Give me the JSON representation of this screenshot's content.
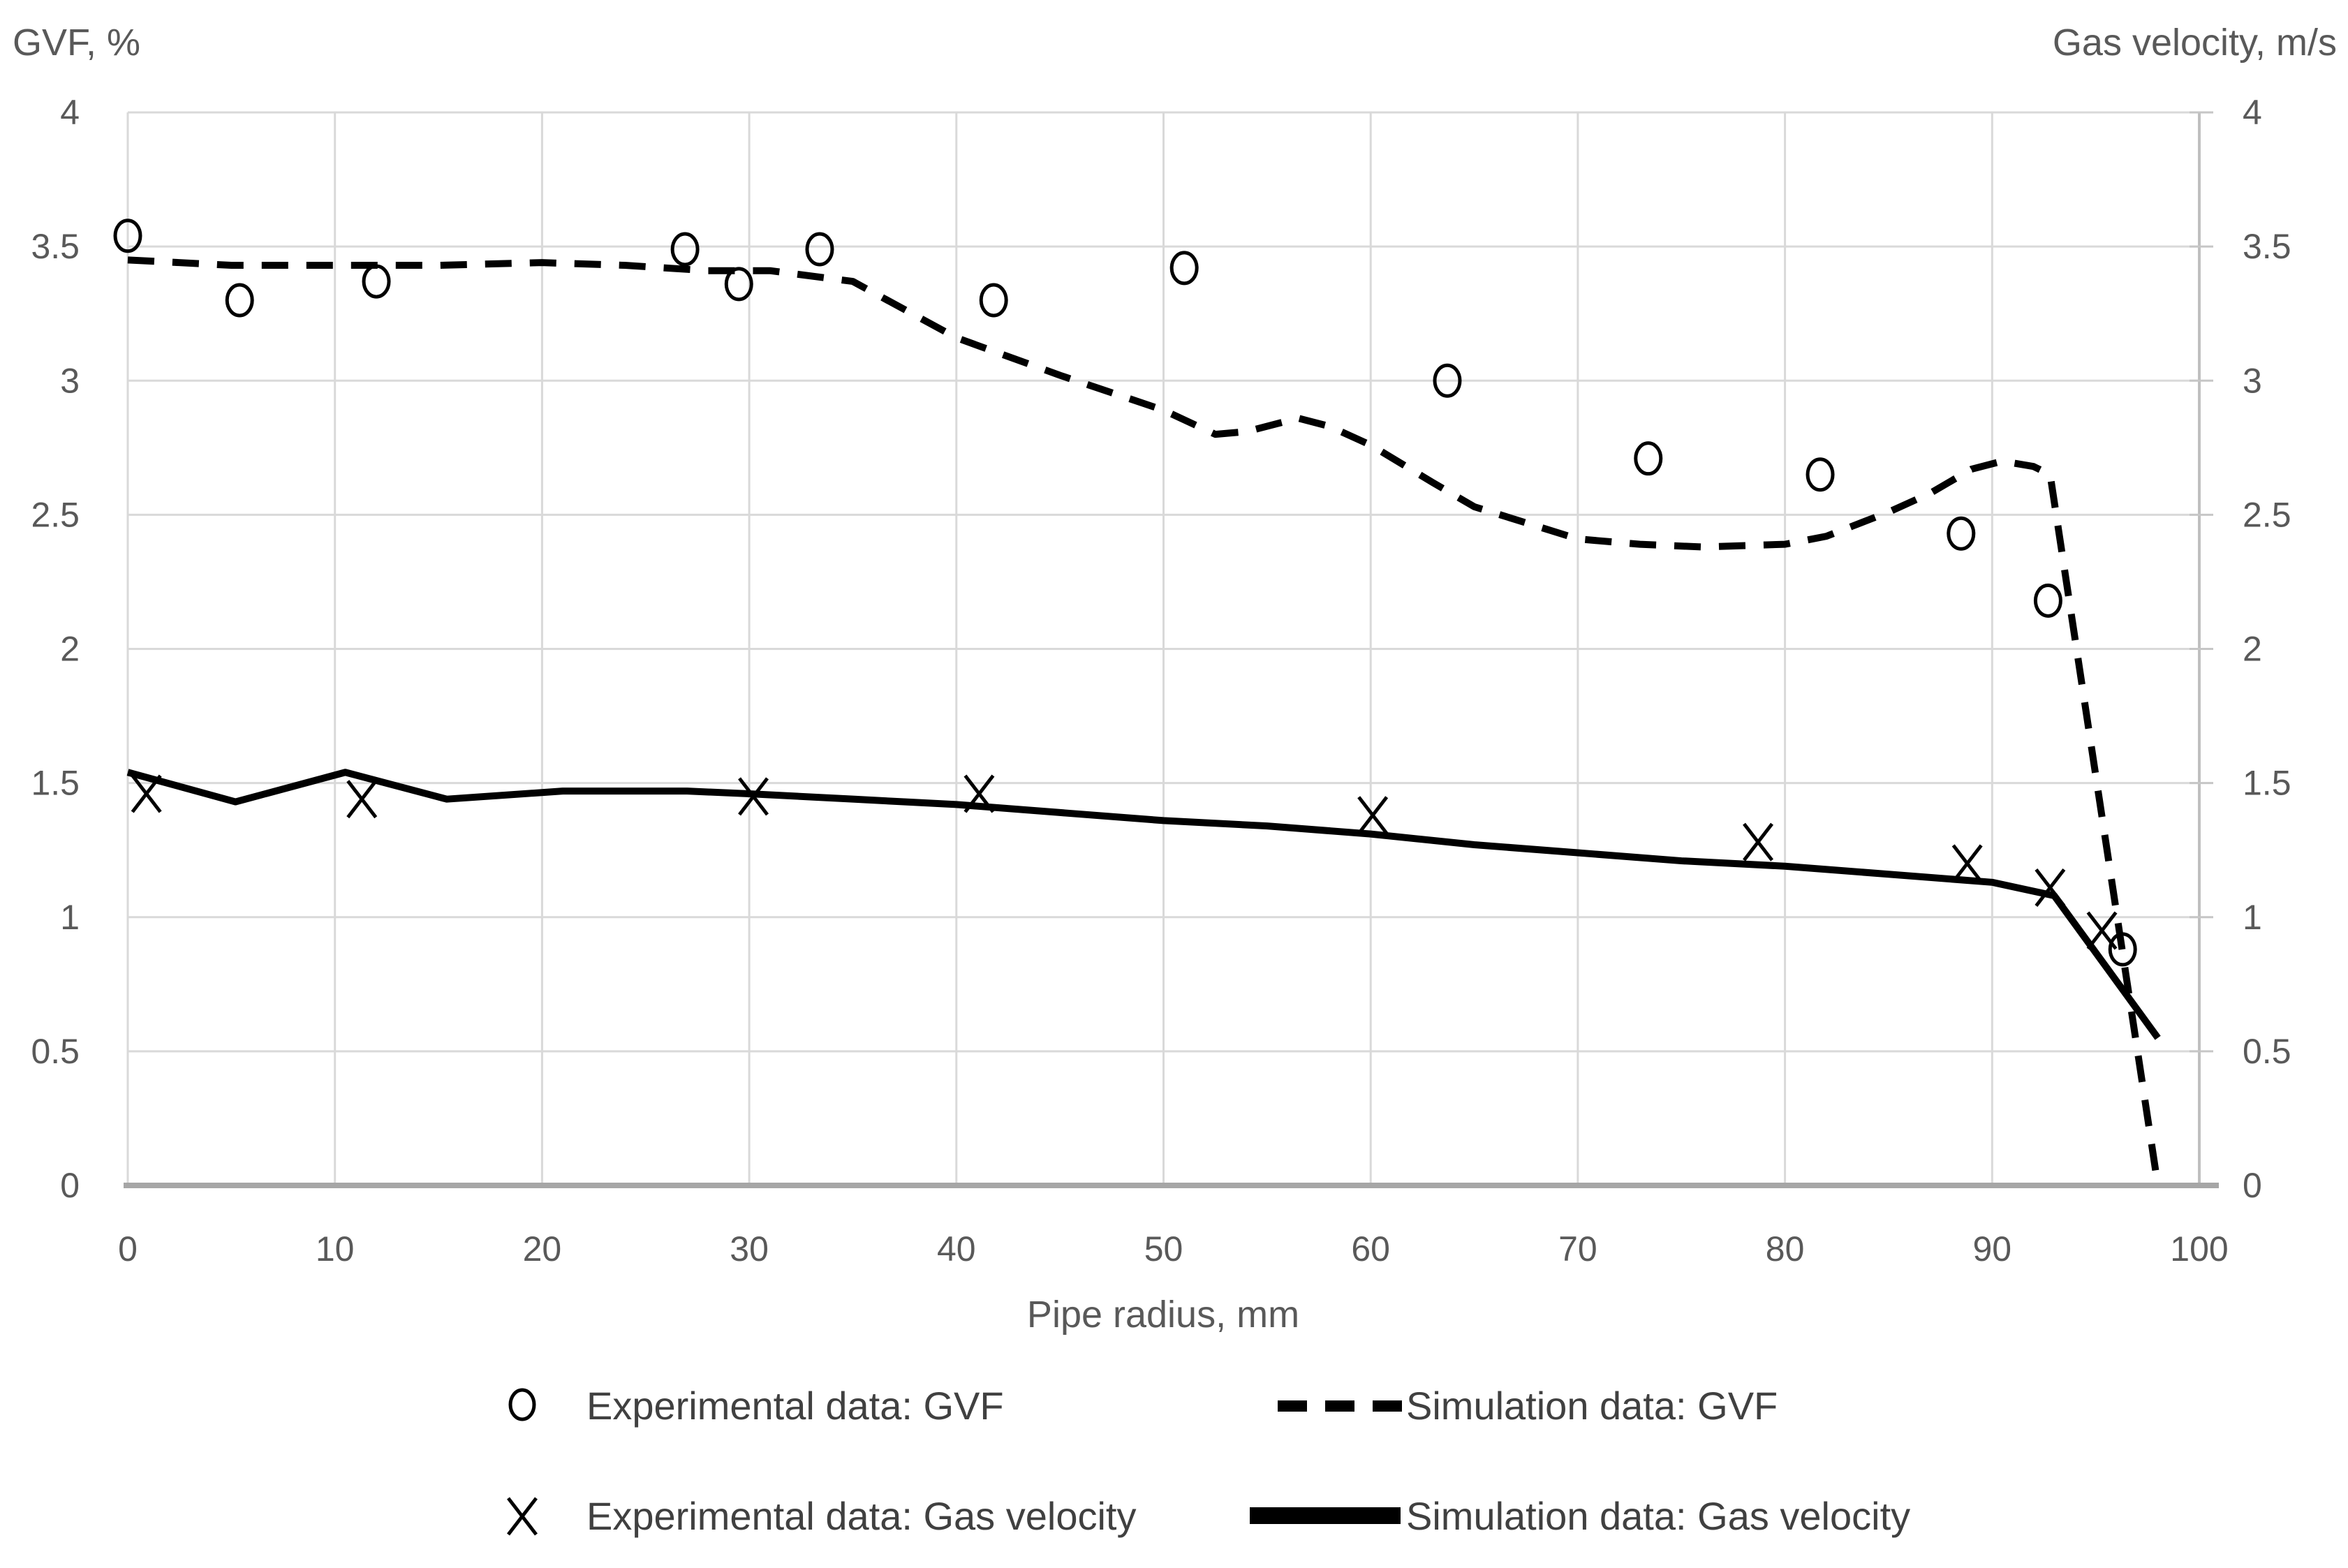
{
  "axes": {
    "left_title": "GVF, %",
    "right_title": "Gas velocity, m/s",
    "x_title": "Pipe radius, mm"
  },
  "chart_data": {
    "type": "mixed",
    "title": "",
    "grid": true,
    "legend_position": "bottom",
    "x_axis": {
      "label": "Pipe radius, mm",
      "min": 0,
      "max": 100,
      "tick_step": 10,
      "tick_labels": [
        "0",
        "10",
        "20",
        "30",
        "40",
        "50",
        "60",
        "70",
        "80",
        "90",
        "100"
      ]
    },
    "y_axis_left": {
      "label": "GVF, %",
      "min": 0,
      "max": 4,
      "tick_step": 0.5,
      "tick_labels": [
        "0",
        "0.5",
        "1",
        "1.5",
        "2",
        "2.5",
        "3",
        "3.5",
        "4"
      ]
    },
    "y_axis_right": {
      "label": "Gas velocity, m/s",
      "min": 0,
      "max": 4,
      "tick_step": 0.5,
      "tick_labels": [
        "0",
        "0.5",
        "1",
        "1.5",
        "2",
        "2.5",
        "3",
        "3.5",
        "4"
      ]
    },
    "colors": {
      "series": "#000000",
      "gridline": "#d9d9d9",
      "axis_line": "#a6a6a6",
      "right_axis_line": "#bfbfbf",
      "tick_text": "#595959",
      "legend_text": "#404040"
    },
    "series": [
      {
        "name": "Experimental data: GVF",
        "type": "scatter",
        "marker": "circle",
        "axis": "left",
        "points": [
          [
            0,
            3.54
          ],
          [
            5.4,
            3.3
          ],
          [
            12,
            3.37
          ],
          [
            26.9,
            3.49
          ],
          [
            29.5,
            3.36
          ],
          [
            33.4,
            3.49
          ],
          [
            41.8,
            3.3
          ],
          [
            51,
            3.42
          ],
          [
            63.7,
            3.0
          ],
          [
            73.4,
            2.71
          ],
          [
            81.7,
            2.65
          ],
          [
            88.5,
            2.43
          ],
          [
            92.7,
            2.18
          ],
          [
            96.3,
            0.88
          ]
        ]
      },
      {
        "name": "Simulation data: GVF",
        "type": "line",
        "style": "dashed",
        "axis": "left",
        "points": [
          [
            0,
            3.45
          ],
          [
            5,
            3.43
          ],
          [
            10,
            3.43
          ],
          [
            15,
            3.43
          ],
          [
            20,
            3.44
          ],
          [
            24,
            3.43
          ],
          [
            28,
            3.41
          ],
          [
            31,
            3.41
          ],
          [
            35,
            3.37
          ],
          [
            40,
            3.16
          ],
          [
            45,
            3.02
          ],
          [
            50,
            2.89
          ],
          [
            52.5,
            2.8
          ],
          [
            54,
            2.81
          ],
          [
            56.5,
            2.86
          ],
          [
            58,
            2.83
          ],
          [
            60,
            2.76
          ],
          [
            63,
            2.62
          ],
          [
            65,
            2.53
          ],
          [
            67.5,
            2.47
          ],
          [
            70,
            2.41
          ],
          [
            73,
            2.39
          ],
          [
            76,
            2.38
          ],
          [
            80,
            2.39
          ],
          [
            82,
            2.42
          ],
          [
            85,
            2.51
          ],
          [
            87,
            2.58
          ],
          [
            89,
            2.67
          ],
          [
            90.5,
            2.7
          ],
          [
            92,
            2.68
          ],
          [
            92.8,
            2.65
          ],
          [
            98,
            0
          ]
        ]
      },
      {
        "name": "Experimental data: Gas velocity",
        "type": "scatter",
        "marker": "x",
        "axis": "right",
        "points": [
          [
            0.9,
            1.46
          ],
          [
            11.3,
            1.44
          ],
          [
            30.2,
            1.45
          ],
          [
            41.1,
            1.46
          ],
          [
            60.1,
            1.38
          ],
          [
            78.7,
            1.28
          ],
          [
            88.8,
            1.2
          ],
          [
            92.8,
            1.11
          ],
          [
            95.3,
            0.95
          ]
        ]
      },
      {
        "name": "Simulation data: Gas velocity",
        "type": "line",
        "style": "solid",
        "axis": "right",
        "points": [
          [
            0,
            1.54
          ],
          [
            5.2,
            1.43
          ],
          [
            10.5,
            1.54
          ],
          [
            15.4,
            1.44
          ],
          [
            21,
            1.47
          ],
          [
            27,
            1.47
          ],
          [
            30,
            1.46
          ],
          [
            35,
            1.44
          ],
          [
            40,
            1.42
          ],
          [
            45,
            1.39
          ],
          [
            50,
            1.36
          ],
          [
            55,
            1.34
          ],
          [
            60,
            1.31
          ],
          [
            65,
            1.27
          ],
          [
            70,
            1.24
          ],
          [
            75,
            1.21
          ],
          [
            80,
            1.19
          ],
          [
            85,
            1.16
          ],
          [
            90,
            1.13
          ],
          [
            93,
            1.08
          ],
          [
            98,
            0.55
          ]
        ]
      }
    ]
  }
}
